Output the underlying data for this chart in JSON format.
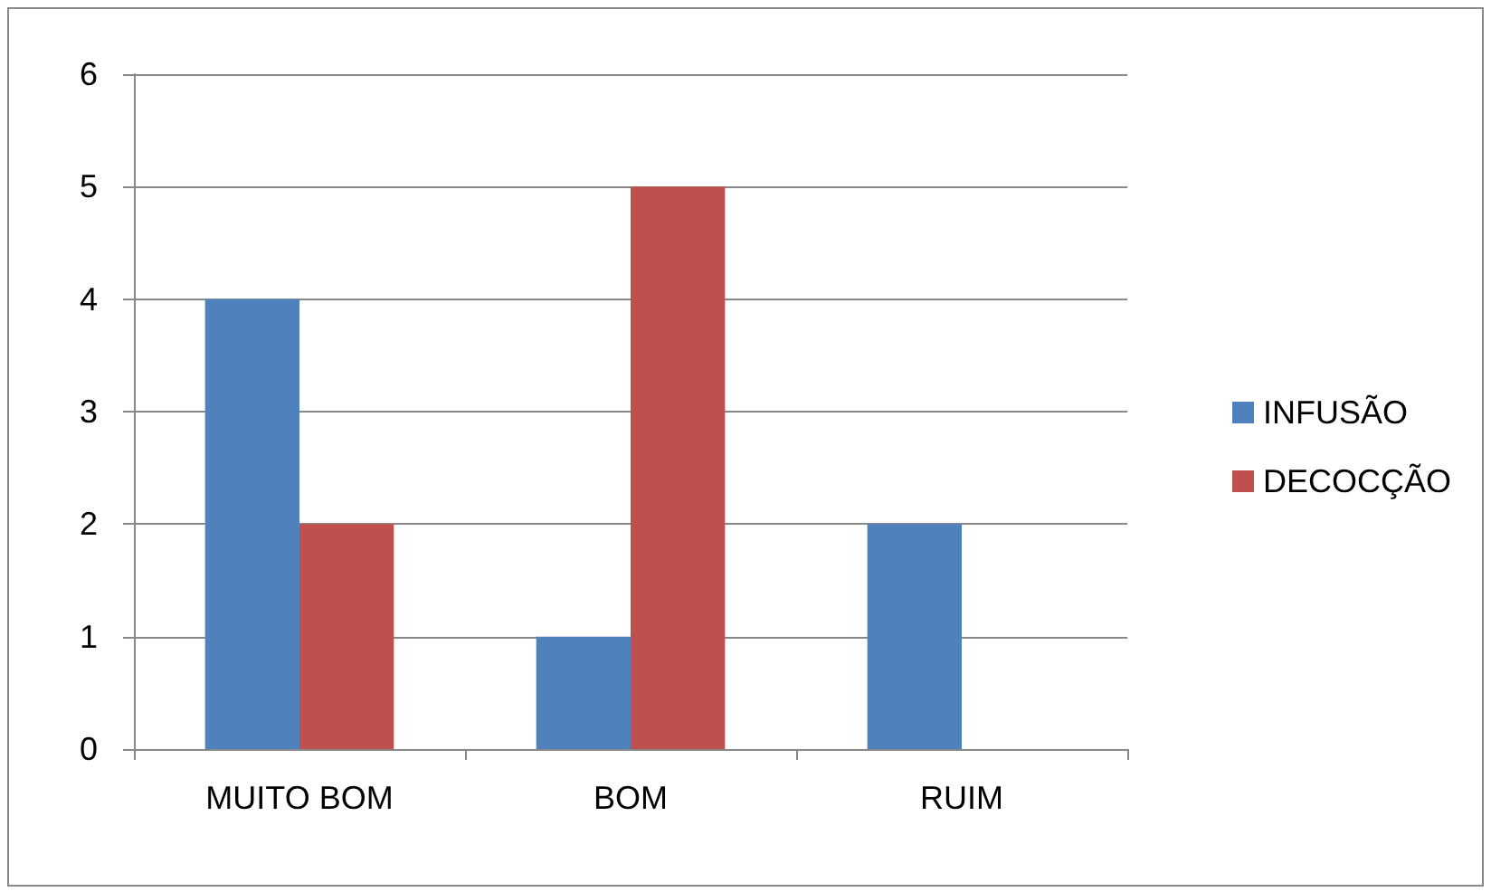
{
  "chart_data": {
    "type": "bar",
    "categories": [
      "MUITO BOM",
      "BOM",
      "RUIM"
    ],
    "series": [
      {
        "name": "INFUSÃO",
        "color": "#4f81bd",
        "values": [
          4,
          1,
          2
        ]
      },
      {
        "name": "DECOCÇÃO",
        "color": "#c0504d",
        "values": [
          2,
          5,
          0
        ]
      }
    ],
    "ylim": [
      0,
      6
    ],
    "yticks": [
      0,
      1,
      2,
      3,
      4,
      5,
      6
    ],
    "grid": "y",
    "legend": "right"
  }
}
